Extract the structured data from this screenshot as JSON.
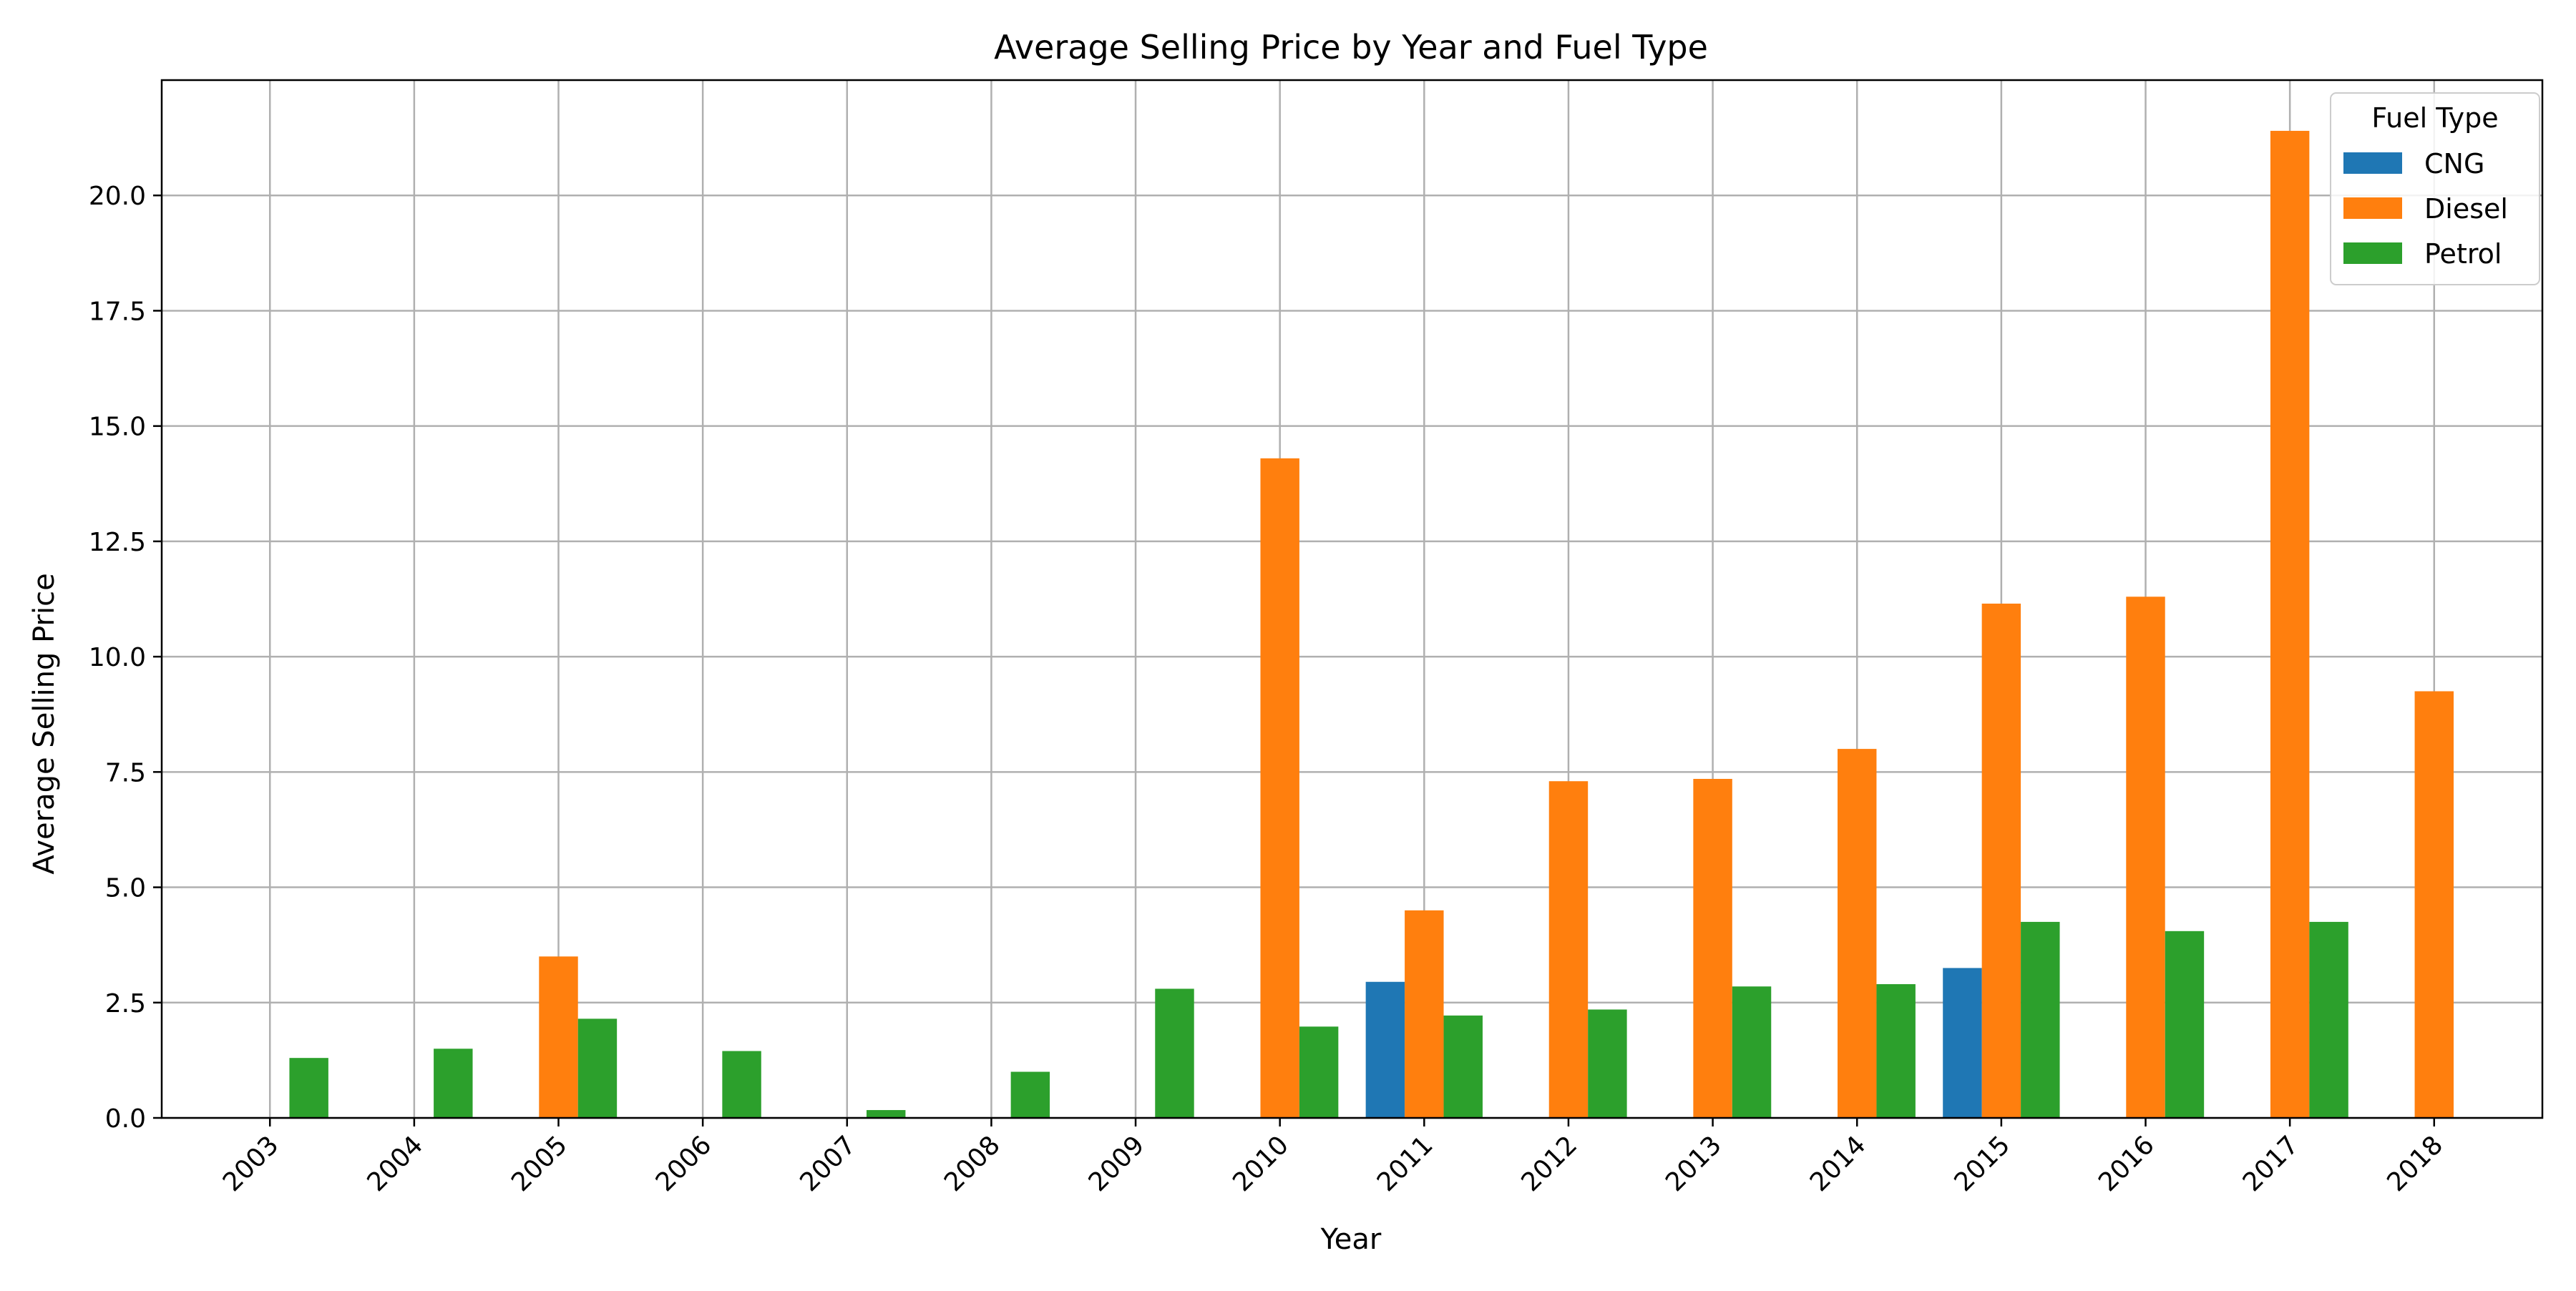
{
  "chart_data": {
    "type": "bar",
    "title": "Average Selling Price by Year and Fuel Type",
    "xlabel": "Year",
    "ylabel": "Average Selling Price",
    "categories": [
      "2003",
      "2004",
      "2005",
      "2006",
      "2007",
      "2008",
      "2009",
      "2010",
      "2011",
      "2012",
      "2013",
      "2014",
      "2015",
      "2016",
      "2017",
      "2018"
    ],
    "series": [
      {
        "name": "CNG",
        "color": "#1f77b4",
        "values": [
          null,
          null,
          null,
          null,
          null,
          null,
          null,
          null,
          2.95,
          null,
          null,
          null,
          3.25,
          null,
          null,
          null
        ]
      },
      {
        "name": "Diesel",
        "color": "#ff7f0e",
        "values": [
          null,
          null,
          3.5,
          null,
          null,
          null,
          null,
          14.3,
          4.5,
          7.3,
          7.35,
          8.0,
          11.15,
          11.3,
          21.4,
          9.25
        ]
      },
      {
        "name": "Petrol",
        "color": "#2ca02c",
        "values": [
          1.3,
          1.5,
          2.15,
          1.45,
          0.17,
          1.0,
          2.8,
          1.98,
          2.22,
          2.35,
          2.85,
          2.9,
          4.25,
          4.05,
          4.25,
          null
        ]
      }
    ],
    "ylim": [
      0,
      22.5
    ],
    "yticks": [
      "0.0",
      "2.5",
      "5.0",
      "7.5",
      "10.0",
      "12.5",
      "15.0",
      "17.5",
      "20.0"
    ],
    "grid": true,
    "legend": {
      "title": "Fuel Type",
      "placement": "top-right"
    }
  }
}
